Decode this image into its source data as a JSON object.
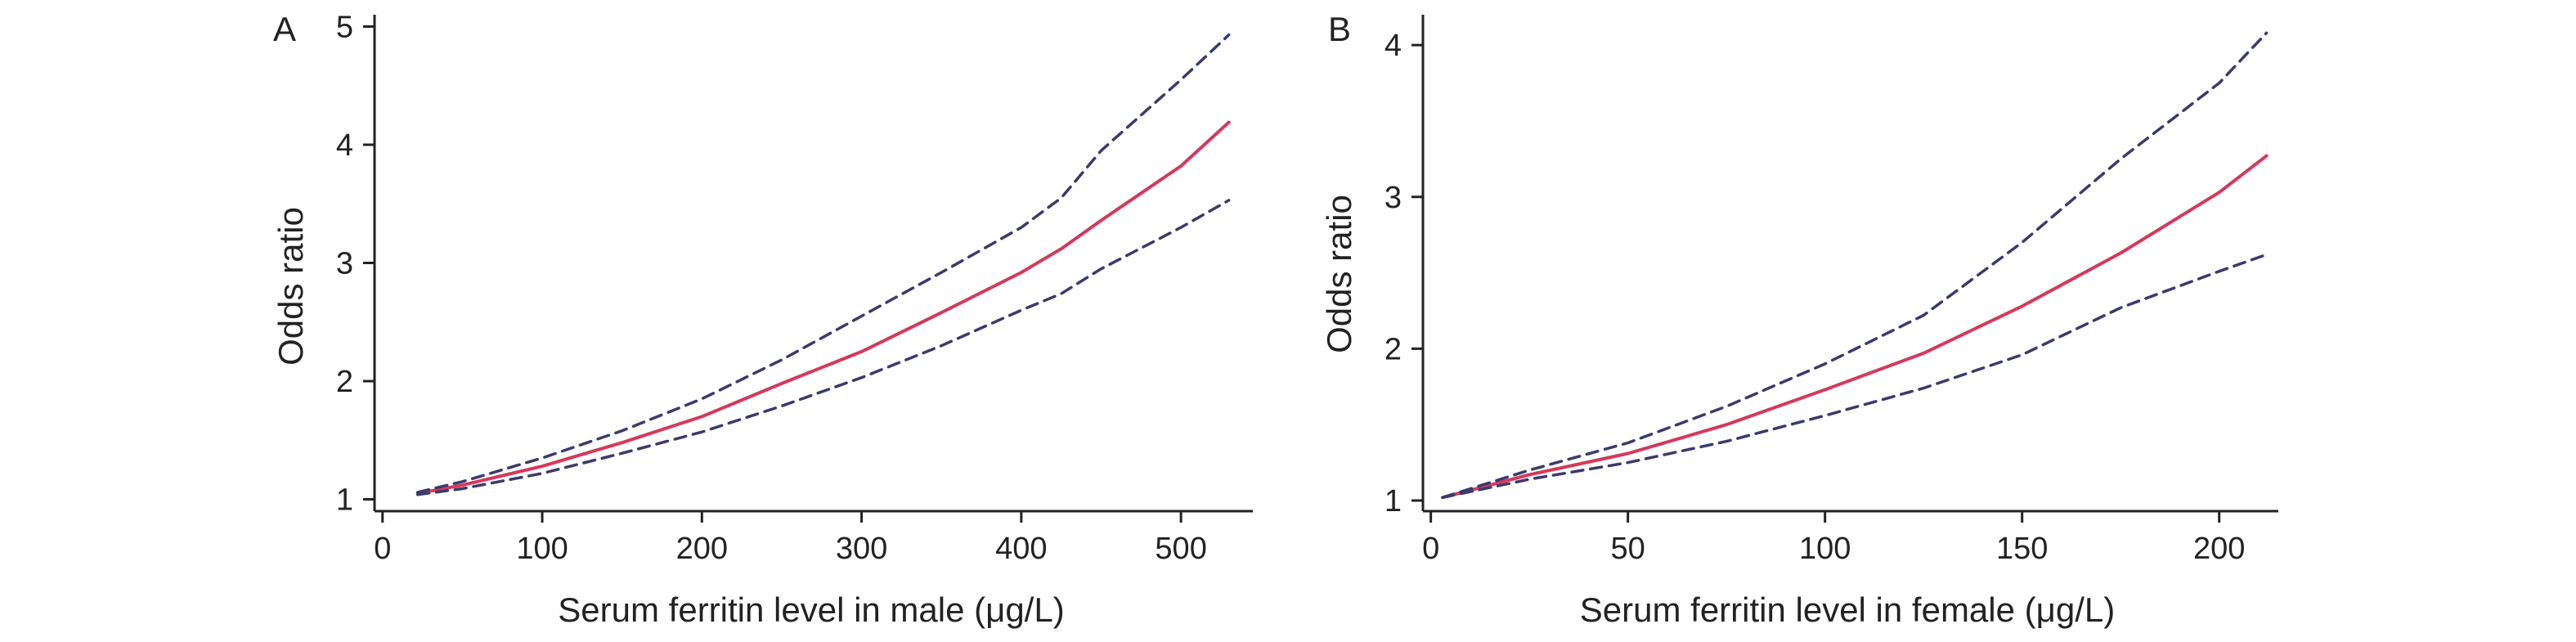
{
  "chart_data": [
    {
      "type": "line",
      "panel_label": "A",
      "xlabel": "Serum ferritin level in male (μg/L)",
      "ylabel": "Odds ratio",
      "xlim": [
        -5,
        545
      ],
      "ylim": [
        0.9,
        5.1
      ],
      "xticks": [
        0,
        100,
        200,
        300,
        400,
        500
      ],
      "yticks": [
        1,
        2,
        3,
        4,
        5
      ],
      "grid": false,
      "colors": {
        "estimate": "#d6385a",
        "ci": "#3a3a6e"
      },
      "series": [
        {
          "role": "estimate",
          "style": "solid",
          "x": [
            22,
            50,
            100,
            150,
            200,
            250,
            300,
            350,
            400,
            425,
            450,
            500,
            530
          ],
          "y": [
            1.05,
            1.12,
            1.28,
            1.48,
            1.7,
            1.98,
            2.25,
            2.58,
            2.92,
            3.12,
            3.36,
            3.82,
            4.19
          ]
        },
        {
          "role": "upper",
          "style": "dashed",
          "x": [
            22,
            50,
            100,
            150,
            200,
            250,
            300,
            350,
            400,
            425,
            450,
            500,
            530
          ],
          "y": [
            1.06,
            1.15,
            1.35,
            1.58,
            1.85,
            2.18,
            2.55,
            2.92,
            3.3,
            3.55,
            3.95,
            4.55,
            4.93
          ]
        },
        {
          "role": "lower",
          "style": "dashed",
          "x": [
            22,
            50,
            100,
            150,
            200,
            250,
            300,
            350,
            400,
            425,
            450,
            500,
            530
          ],
          "y": [
            1.04,
            1.09,
            1.22,
            1.39,
            1.57,
            1.79,
            2.03,
            2.3,
            2.6,
            2.74,
            2.95,
            3.3,
            3.53
          ]
        }
      ]
    },
    {
      "type": "line",
      "panel_label": "B",
      "xlabel": "Serum ferritin level in female (μg/L)",
      "ylabel": "Odds ratio",
      "xlim": [
        -2,
        215
      ],
      "ylim": [
        0.93,
        4.2
      ],
      "xticks": [
        0,
        50,
        100,
        150,
        200
      ],
      "yticks": [
        1,
        2,
        3,
        4
      ],
      "grid": false,
      "colors": {
        "estimate": "#d6385a",
        "ci": "#3a3a6e"
      },
      "series": [
        {
          "role": "estimate",
          "style": "solid",
          "x": [
            3,
            25,
            50,
            75,
            100,
            125,
            150,
            175,
            200,
            212
          ],
          "y": [
            1.02,
            1.17,
            1.31,
            1.5,
            1.73,
            1.97,
            2.28,
            2.63,
            3.03,
            3.27
          ]
        },
        {
          "role": "upper",
          "style": "dashed",
          "x": [
            3,
            25,
            50,
            75,
            100,
            125,
            150,
            175,
            200,
            212
          ],
          "y": [
            1.02,
            1.2,
            1.38,
            1.62,
            1.9,
            2.22,
            2.7,
            3.25,
            3.75,
            4.08
          ]
        },
        {
          "role": "lower",
          "style": "dashed",
          "x": [
            3,
            25,
            50,
            75,
            100,
            125,
            150,
            175,
            200,
            212
          ],
          "y": [
            1.02,
            1.14,
            1.25,
            1.39,
            1.56,
            1.74,
            1.96,
            2.27,
            2.51,
            2.62
          ]
        }
      ]
    }
  ]
}
